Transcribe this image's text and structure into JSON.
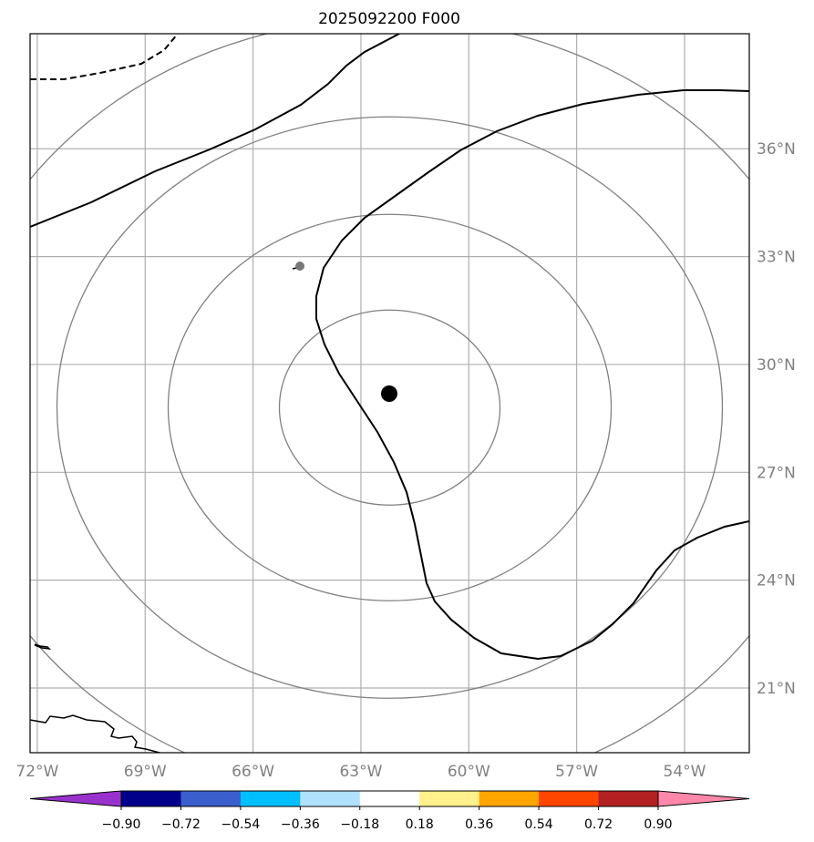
{
  "title": "2025092200 F000",
  "map": {
    "lon_labels": [
      "72°W",
      "69°W",
      "66°W",
      "63°W",
      "60°W",
      "57°W",
      "54°W"
    ],
    "lat_labels": [
      "36°N",
      "33°N",
      "30°N",
      "27°N",
      "24°N",
      "21°N"
    ],
    "lon_range": [
      -72.2,
      -52.2
    ],
    "lat_range": [
      19.2,
      39.2
    ],
    "storm_center": {
      "lon": -62.2,
      "lat": 28.8
    },
    "gridline_color": "#b0b0b0",
    "range_ring_color": "#808080"
  },
  "colorbar": {
    "tick_labels": [
      "−0.90",
      "−0.72",
      "−0.54",
      "−0.36",
      "−0.18",
      "0.18",
      "0.36",
      "0.54",
      "0.72",
      "0.90"
    ],
    "colors": [
      "#9932cc",
      "#00008b",
      "#3a5fcd",
      "#00bfff",
      "#b0e2ff",
      "#ffffff",
      "#fff08c",
      "#ffa500",
      "#ff4500",
      "#b22222",
      "#ff88aa"
    ],
    "extend": "both"
  }
}
